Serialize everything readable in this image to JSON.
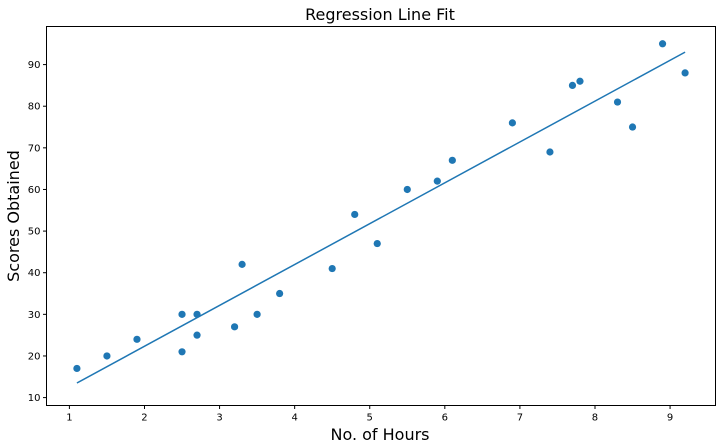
{
  "chart_data": {
    "type": "scatter",
    "title": "Regression Line Fit",
    "xlabel": "No. of Hours",
    "ylabel": "Scores Obtained",
    "xlim": [
      0.695,
      9.605
    ],
    "ylim": [
      8.1,
      99.15
    ],
    "xticks": [
      1,
      2,
      3,
      4,
      5,
      6,
      7,
      8,
      9
    ],
    "yticks": [
      10,
      20,
      30,
      40,
      50,
      60,
      70,
      80,
      90
    ],
    "grid": false,
    "series": [
      {
        "kind": "scatter",
        "color": "#1f77b4",
        "points": [
          [
            1.1,
            17
          ],
          [
            1.5,
            20
          ],
          [
            1.9,
            24
          ],
          [
            2.5,
            21
          ],
          [
            2.5,
            30
          ],
          [
            2.7,
            25
          ],
          [
            2.7,
            30
          ],
          [
            3.2,
            27
          ],
          [
            3.3,
            42
          ],
          [
            3.5,
            30
          ],
          [
            3.8,
            35
          ],
          [
            4.5,
            41
          ],
          [
            4.8,
            54
          ],
          [
            5.1,
            47
          ],
          [
            5.5,
            60
          ],
          [
            5.9,
            62
          ],
          [
            6.1,
            67
          ],
          [
            6.9,
            76
          ],
          [
            7.4,
            69
          ],
          [
            7.7,
            85
          ],
          [
            7.8,
            86
          ],
          [
            8.3,
            81
          ],
          [
            8.5,
            75
          ],
          [
            8.9,
            95
          ],
          [
            9.2,
            88
          ]
        ]
      },
      {
        "kind": "line",
        "color": "#1f77b4",
        "points": [
          [
            1.1,
            13.5
          ],
          [
            9.2,
            93
          ]
        ]
      }
    ]
  }
}
